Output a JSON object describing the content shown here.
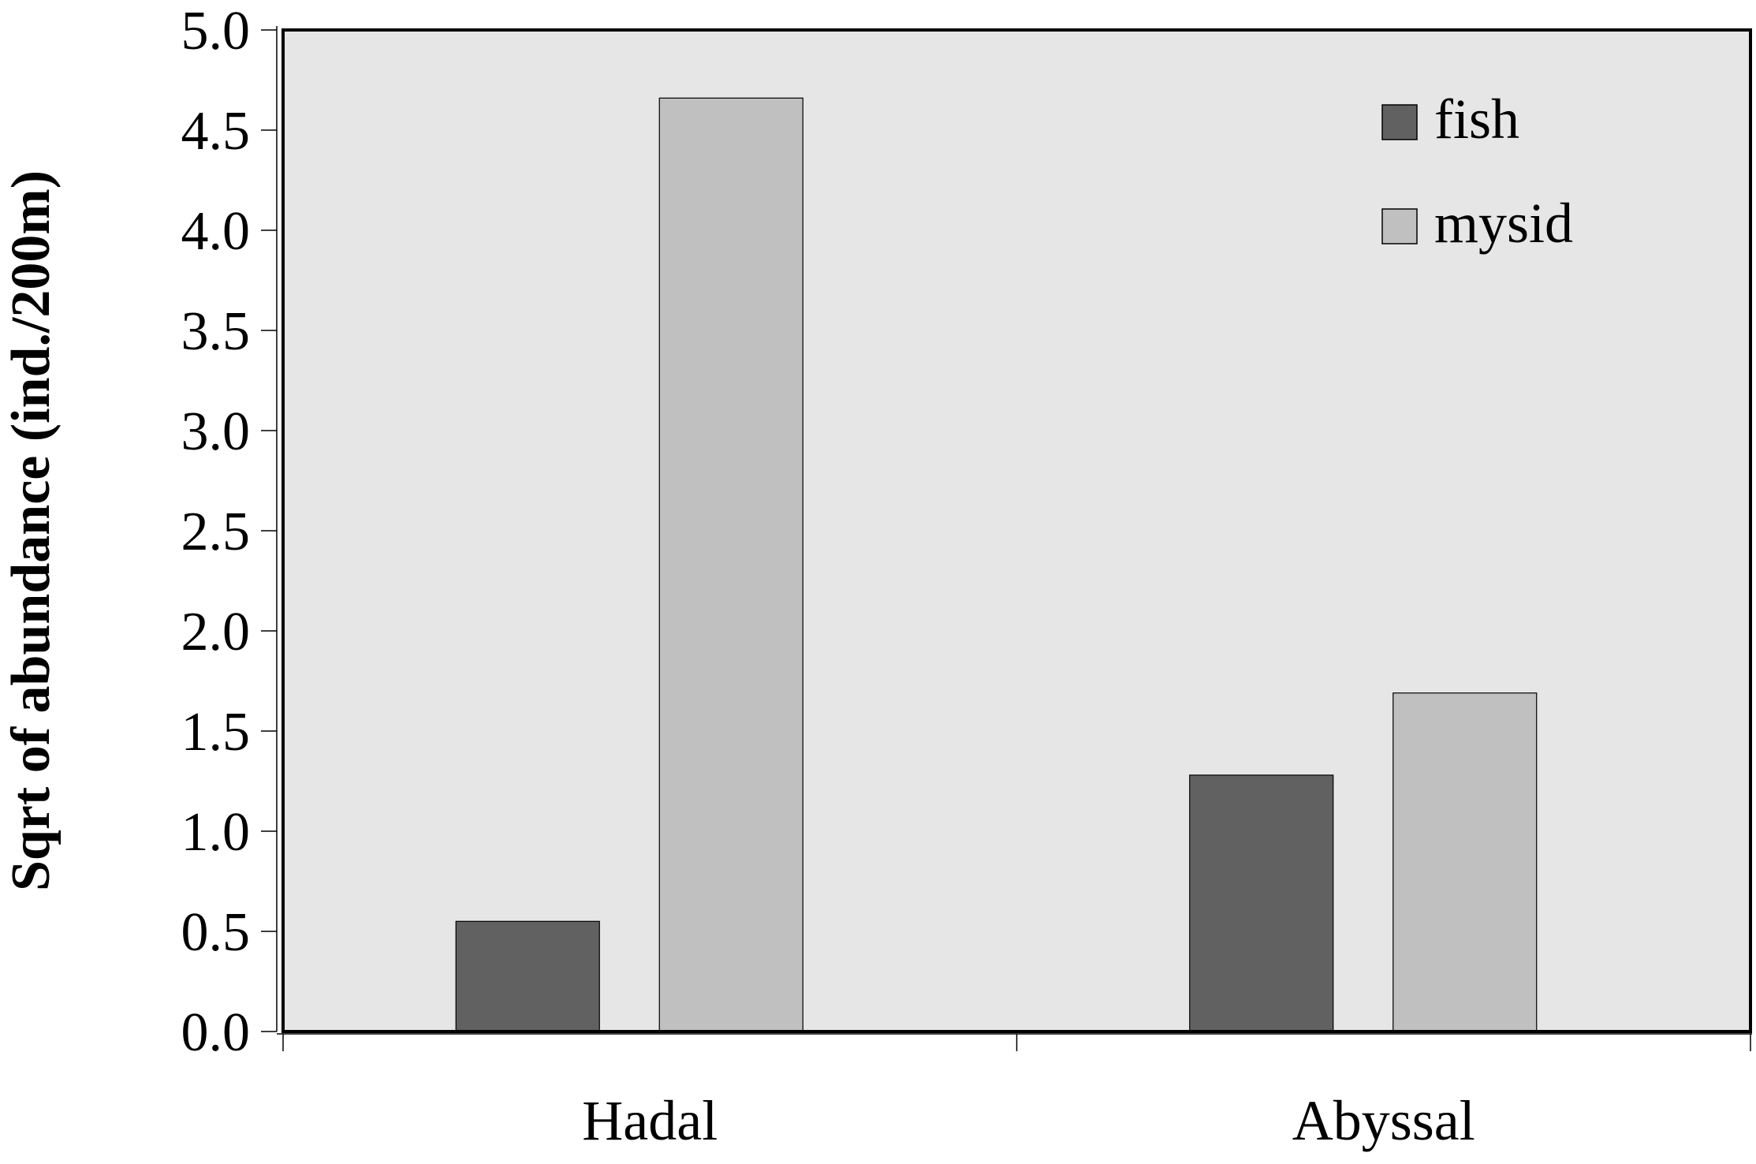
{
  "chart_data": {
    "type": "bar",
    "title": "",
    "xlabel": "",
    "ylabel": "Sqrt of abundance (ind./200m)",
    "categories": [
      "Hadal",
      "Abyssal"
    ],
    "series": [
      {
        "name": "fish",
        "values": [
          0.55,
          1.28
        ],
        "color": "#616161"
      },
      {
        "name": "mysid",
        "values": [
          4.66,
          1.69
        ],
        "color": "#c0c0c0"
      }
    ],
    "ylim": [
      0,
      5
    ],
    "yticks": [
      "0.0",
      "0.5",
      "1.0",
      "1.5",
      "2.0",
      "2.5",
      "3.0",
      "3.5",
      "4.0",
      "4.5",
      "5.0"
    ],
    "grid": false,
    "legend_position": "top-right",
    "plot_background": "#e6e6e6"
  }
}
